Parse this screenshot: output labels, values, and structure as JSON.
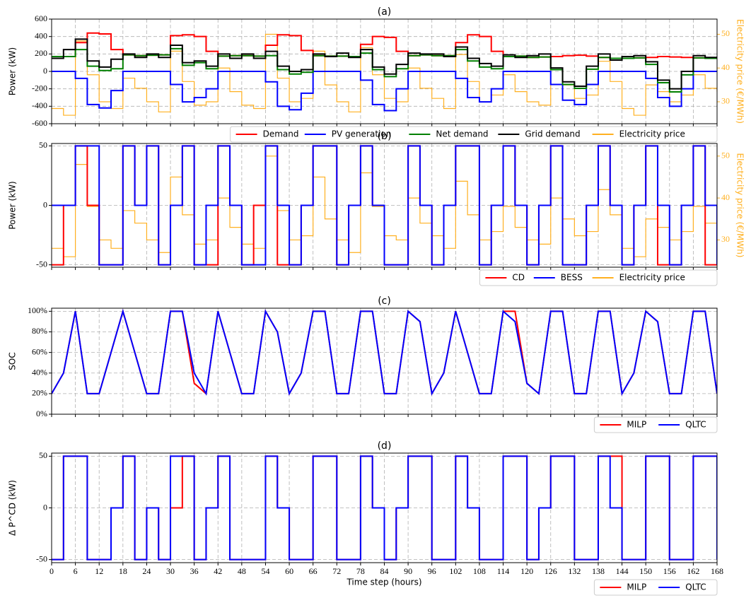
{
  "chart_data": [
    {
      "type": "step",
      "title": "(a)",
      "ylabel": "Power (kW)",
      "y2label": "Electricity price (€/MWh)",
      "xlim": [
        0,
        168
      ],
      "ylim": [
        -600,
        600
      ],
      "yticks": [
        -600,
        -400,
        -200,
        0,
        200,
        400,
        600
      ],
      "y2lim": [
        23.5,
        54.5
      ],
      "y2ticks": [
        30,
        40,
        50
      ],
      "grid": true,
      "legend": "below right",
      "x": [
        0,
        3,
        6,
        9,
        12,
        15,
        18,
        21,
        24,
        27,
        30,
        33,
        36,
        39,
        42,
        45,
        48,
        51,
        54,
        57,
        60,
        63,
        66,
        69,
        72,
        75,
        78,
        81,
        84,
        87,
        90,
        93,
        96,
        99,
        102,
        105,
        108,
        111,
        114,
        117,
        120,
        123,
        126,
        129,
        132,
        135,
        138,
        141,
        144,
        147,
        150,
        153,
        156,
        159,
        162,
        165,
        168
      ],
      "series": [
        {
          "name": "Demand",
          "color": "#ff0000",
          "values": [
            170,
            170,
            330,
            440,
            430,
            250,
            190,
            180,
            185,
            190,
            410,
            420,
            400,
            230,
            175,
            180,
            180,
            175,
            300,
            420,
            410,
            240,
            180,
            175,
            175,
            170,
            310,
            400,
            390,
            230,
            180,
            190,
            180,
            180,
            330,
            420,
            400,
            230,
            170,
            175,
            160,
            165,
            170,
            180,
            185,
            175,
            160,
            150,
            150,
            155,
            160,
            170,
            165,
            160,
            155,
            150,
            150
          ]
        },
        {
          "name": "PV generation",
          "color": "#0000ff",
          "values": [
            0,
            0,
            -80,
            -380,
            -420,
            -220,
            0,
            0,
            0,
            0,
            -150,
            -350,
            -300,
            -200,
            0,
            0,
            0,
            0,
            -120,
            -400,
            -440,
            -250,
            0,
            0,
            0,
            0,
            -100,
            -380,
            -450,
            -200,
            0,
            0,
            0,
            0,
            -80,
            -300,
            -350,
            -200,
            0,
            0,
            0,
            0,
            -150,
            -330,
            -380,
            -150,
            0,
            0,
            0,
            0,
            -80,
            -300,
            -400,
            -200,
            0,
            0,
            0
          ]
        },
        {
          "name": "Net demand",
          "color": "#008000",
          "values": [
            170,
            170,
            250,
            60,
            10,
            30,
            190,
            180,
            185,
            190,
            260,
            70,
            100,
            30,
            175,
            180,
            180,
            175,
            180,
            20,
            -30,
            -10,
            180,
            175,
            175,
            170,
            210,
            20,
            -60,
            30,
            180,
            190,
            180,
            180,
            250,
            120,
            50,
            30,
            170,
            175,
            160,
            165,
            20,
            -150,
            -195,
            25,
            160,
            150,
            150,
            155,
            80,
            -130,
            -235,
            -40,
            155,
            150,
            150
          ]
        },
        {
          "name": "Grid demand",
          "color": "#000000",
          "values": [
            150,
            250,
            370,
            120,
            50,
            140,
            200,
            160,
            200,
            160,
            300,
            100,
            120,
            60,
            200,
            150,
            200,
            150,
            230,
            60,
            0,
            20,
            200,
            170,
            210,
            160,
            250,
            50,
            -30,
            80,
            210,
            200,
            200,
            170,
            280,
            150,
            90,
            60,
            190,
            160,
            180,
            200,
            40,
            -120,
            -170,
            60,
            200,
            130,
            170,
            180,
            110,
            -100,
            -200,
            0,
            180,
            160,
            170
          ]
        },
        {
          "name": "Electricity price",
          "color": "#ffb020",
          "axis": "y2",
          "values": [
            28,
            26,
            48,
            38,
            30,
            28,
            37,
            34,
            30,
            27,
            45,
            36,
            29,
            30,
            40,
            33,
            29,
            28,
            50,
            37,
            30,
            31,
            45,
            35,
            30,
            27,
            46,
            38,
            31,
            30,
            40,
            34,
            31,
            28,
            44,
            36,
            30,
            32,
            38,
            33,
            30,
            29,
            40,
            35,
            31,
            32,
            42,
            36,
            28,
            26,
            35,
            33,
            30,
            32,
            38,
            34,
            33
          ]
        }
      ]
    },
    {
      "type": "step",
      "title": "(b)",
      "ylabel": "Power (kW)",
      "y2label": "Electricity price (€/MWh)",
      "xlim": [
        0,
        168
      ],
      "ylim": [
        -52,
        52
      ],
      "yticks": [
        -50,
        0,
        50
      ],
      "y2lim": [
        23.5,
        53
      ],
      "y2ticks": [
        30,
        40,
        50
      ],
      "grid": true,
      "legend": "below right",
      "x": [
        0,
        3,
        6,
        9,
        12,
        15,
        18,
        21,
        24,
        27,
        30,
        33,
        36,
        39,
        42,
        45,
        48,
        51,
        54,
        57,
        60,
        63,
        66,
        69,
        72,
        75,
        78,
        81,
        84,
        87,
        90,
        93,
        96,
        99,
        102,
        105,
        108,
        111,
        114,
        117,
        120,
        123,
        126,
        129,
        132,
        135,
        138,
        141,
        144,
        147,
        150,
        153,
        156,
        159,
        162,
        165,
        168
      ],
      "series": [
        {
          "name": "CD",
          "color": "#ff0000",
          "values": [
            -50,
            0,
            50,
            0,
            -50,
            -50,
            50,
            0,
            50,
            -50,
            0,
            50,
            -50,
            -50,
            50,
            0,
            -50,
            0,
            50,
            -50,
            -50,
            0,
            50,
            50,
            -50,
            0,
            50,
            0,
            -50,
            -50,
            50,
            0,
            -50,
            0,
            50,
            50,
            -50,
            0,
            50,
            0,
            -50,
            0,
            50,
            -50,
            -50,
            0,
            50,
            0,
            -50,
            0,
            50,
            -50,
            -50,
            0,
            50,
            -50,
            0
          ]
        },
        {
          "name": "BESS",
          "color": "#0000ff",
          "values": [
            0,
            0,
            50,
            50,
            -50,
            -50,
            50,
            0,
            50,
            -50,
            0,
            50,
            -50,
            0,
            50,
            0,
            -50,
            -50,
            50,
            0,
            -50,
            0,
            50,
            50,
            -50,
            0,
            50,
            0,
            -50,
            -50,
            50,
            0,
            -50,
            0,
            50,
            50,
            -50,
            0,
            50,
            0,
            -50,
            0,
            50,
            -50,
            -50,
            0,
            50,
            0,
            -50,
            0,
            50,
            0,
            -50,
            0,
            50,
            0,
            -50
          ]
        },
        {
          "name": "Electricity price",
          "color": "#ffb020",
          "axis": "y2",
          "values": [
            28,
            26,
            48,
            38,
            30,
            28,
            37,
            34,
            30,
            27,
            45,
            36,
            29,
            30,
            40,
            33,
            29,
            28,
            50,
            37,
            30,
            31,
            45,
            35,
            30,
            27,
            46,
            38,
            31,
            30,
            40,
            34,
            31,
            28,
            44,
            36,
            30,
            32,
            38,
            33,
            30,
            29,
            40,
            35,
            31,
            32,
            42,
            36,
            28,
            26,
            35,
            33,
            30,
            32,
            38,
            34,
            33
          ]
        }
      ]
    },
    {
      "type": "line",
      "title": "(c)",
      "ylabel": "SOC",
      "xlim": [
        0,
        168
      ],
      "ylim": [
        0,
        103
      ],
      "yticks": [
        {
          "value": 0,
          "label": "0%"
        },
        {
          "value": 20,
          "label": "20%"
        },
        {
          "value": 40,
          "label": "40%"
        },
        {
          "value": 60,
          "label": "60%"
        },
        {
          "value": 80,
          "label": "80%"
        },
        {
          "value": 100,
          "label": "100%"
        }
      ],
      "grid": true,
      "legend": "below right",
      "x": [
        0,
        3,
        6,
        9,
        12,
        15,
        18,
        21,
        24,
        27,
        30,
        33,
        36,
        39,
        42,
        45,
        48,
        51,
        54,
        57,
        60,
        63,
        66,
        69,
        72,
        75,
        78,
        81,
        84,
        87,
        90,
        93,
        96,
        99,
        102,
        105,
        108,
        111,
        114,
        117,
        120,
        123,
        126,
        129,
        132,
        135,
        138,
        141,
        144,
        147,
        150,
        153,
        156,
        159,
        162,
        165,
        168
      ],
      "series": [
        {
          "name": "MILP",
          "color": "#ff0000",
          "values": [
            20,
            40,
            100,
            20,
            20,
            60,
            100,
            60,
            20,
            20,
            100,
            100,
            30,
            20,
            100,
            60,
            20,
            20,
            100,
            80,
            20,
            40,
            100,
            100,
            20,
            20,
            100,
            100,
            20,
            20,
            100,
            90,
            20,
            40,
            100,
            60,
            20,
            20,
            100,
            100,
            30,
            20,
            100,
            100,
            20,
            20,
            100,
            100,
            20,
            40,
            100,
            90,
            20,
            20,
            100,
            100,
            20
          ]
        },
        {
          "name": "QLTC",
          "color": "#0000ff",
          "values": [
            20,
            40,
            100,
            20,
            20,
            60,
            100,
            60,
            20,
            20,
            100,
            100,
            40,
            20,
            100,
            60,
            20,
            20,
            100,
            80,
            20,
            40,
            100,
            100,
            20,
            20,
            100,
            100,
            20,
            20,
            100,
            90,
            20,
            40,
            100,
            60,
            20,
            20,
            100,
            90,
            30,
            20,
            100,
            100,
            20,
            20,
            100,
            100,
            20,
            40,
            100,
            90,
            20,
            20,
            100,
            100,
            20
          ]
        }
      ]
    },
    {
      "type": "step",
      "title": "(d)",
      "ylabel": "Δ P^CD (kW)",
      "xlabel": "Time step (hours)",
      "xlim": [
        0,
        168
      ],
      "ylim": [
        -53,
        53
      ],
      "yticks": [
        -50,
        0,
        50
      ],
      "xticks": [
        0,
        6,
        12,
        18,
        24,
        30,
        36,
        42,
        48,
        54,
        60,
        66,
        72,
        78,
        84,
        90,
        96,
        102,
        108,
        114,
        120,
        126,
        132,
        138,
        144,
        150,
        156,
        162,
        168
      ],
      "grid": true,
      "legend": "below right",
      "x": [
        0,
        3,
        6,
        9,
        12,
        15,
        18,
        21,
        24,
        27,
        30,
        33,
        36,
        39,
        42,
        45,
        48,
        51,
        54,
        57,
        60,
        63,
        66,
        69,
        72,
        75,
        78,
        81,
        84,
        87,
        90,
        93,
        96,
        99,
        102,
        105,
        108,
        111,
        114,
        117,
        120,
        123,
        126,
        129,
        132,
        135,
        138,
        141,
        144,
        147,
        150,
        153,
        156,
        159,
        162,
        165,
        168
      ],
      "series": [
        {
          "name": "MILP",
          "color": "#ff0000",
          "values": [
            -50,
            50,
            50,
            -50,
            -50,
            0,
            50,
            -50,
            0,
            -50,
            0,
            50,
            -50,
            0,
            50,
            -50,
            -50,
            -50,
            50,
            0,
            -50,
            -50,
            50,
            50,
            -50,
            -50,
            50,
            0,
            -50,
            0,
            50,
            50,
            -50,
            -50,
            50,
            0,
            -50,
            -50,
            50,
            50,
            -50,
            0,
            50,
            50,
            -50,
            -50,
            50,
            50,
            -50,
            -50,
            50,
            50,
            -50,
            -50,
            50,
            50,
            -50
          ]
        },
        {
          "name": "QLTC",
          "color": "#0000ff",
          "values": [
            -50,
            50,
            50,
            -50,
            -50,
            0,
            50,
            -50,
            0,
            -50,
            50,
            50,
            -50,
            0,
            50,
            -50,
            -50,
            -50,
            50,
            0,
            -50,
            -50,
            50,
            50,
            -50,
            -50,
            50,
            0,
            -50,
            0,
            50,
            50,
            -50,
            -50,
            50,
            0,
            -50,
            -50,
            50,
            50,
            -50,
            0,
            50,
            50,
            -50,
            -50,
            50,
            0,
            -50,
            -50,
            50,
            50,
            -50,
            -50,
            50,
            50,
            -50
          ]
        }
      ]
    }
  ]
}
